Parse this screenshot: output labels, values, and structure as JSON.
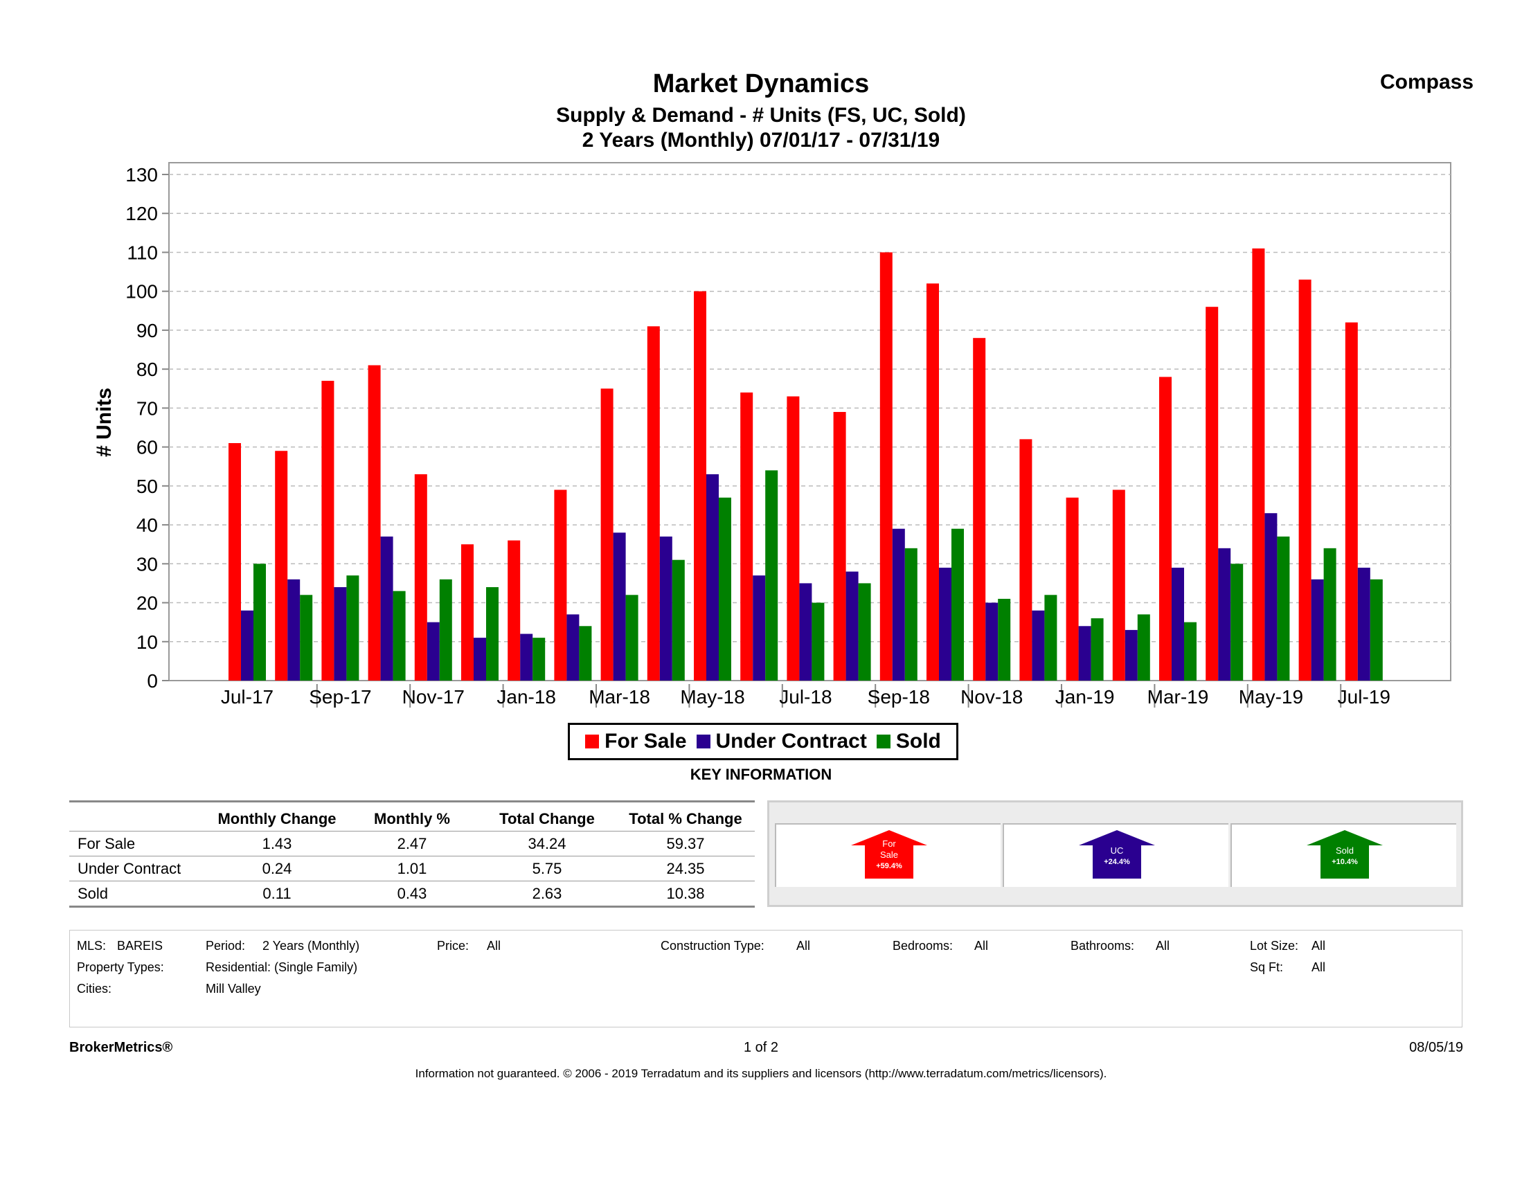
{
  "header": {
    "title": "Market Dynamics",
    "subtitle": "Supply & Demand - # Units (FS, UC, Sold)",
    "period": "2 Years (Monthly) 07/01/17 - 07/31/19",
    "brand": "Compass"
  },
  "chart_data": {
    "type": "bar",
    "title": "Market Dynamics",
    "ylabel": "# Units",
    "xlabel": "",
    "ylim": [
      0,
      130
    ],
    "yticks": [
      0,
      10,
      20,
      30,
      40,
      50,
      60,
      70,
      80,
      90,
      100,
      110,
      120,
      130
    ],
    "grid": true,
    "months": [
      "Jul-17",
      "Aug-17",
      "Sep-17",
      "Oct-17",
      "Nov-17",
      "Dec-17",
      "Jan-18",
      "Feb-18",
      "Mar-18",
      "Apr-18",
      "May-18",
      "Jun-18",
      "Jul-18",
      "Aug-18",
      "Sep-18",
      "Oct-18",
      "Nov-18",
      "Dec-18",
      "Jan-19",
      "Feb-19",
      "Mar-19",
      "Apr-19",
      "May-19",
      "Jun-19",
      "Jul-19"
    ],
    "tick_labels": [
      "Jul-17",
      "Sep-17",
      "Nov-17",
      "Jan-18",
      "Mar-18",
      "May-18",
      "Jul-18",
      "Sep-18",
      "Nov-18",
      "Jan-19",
      "Mar-19",
      "May-19",
      "Jul-19"
    ],
    "series": [
      {
        "name": "For Sale",
        "color": "#ff0000",
        "values": [
          61,
          59,
          77,
          81,
          53,
          35,
          36,
          49,
          75,
          91,
          100,
          74,
          73,
          69,
          110,
          102,
          88,
          62,
          47,
          49,
          78,
          96,
          111,
          103,
          92
        ]
      },
      {
        "name": "Under Contract",
        "color": "#2a0090",
        "values": [
          18,
          26,
          24,
          37,
          15,
          11,
          12,
          17,
          38,
          37,
          53,
          27,
          25,
          28,
          39,
          29,
          20,
          18,
          14,
          13,
          29,
          34,
          43,
          26,
          29
        ]
      },
      {
        "name": "Sold",
        "color": "#008000",
        "values": [
          30,
          22,
          27,
          23,
          26,
          24,
          11,
          14,
          22,
          31,
          47,
          54,
          20,
          25,
          34,
          39,
          21,
          22,
          16,
          17,
          15,
          30,
          37,
          34,
          26
        ]
      }
    ]
  },
  "legend": {
    "items": [
      {
        "label": "For Sale",
        "color": "#ff0000"
      },
      {
        "label": "Under Contract",
        "color": "#2a0090"
      },
      {
        "label": "Sold",
        "color": "#008000"
      }
    ]
  },
  "key_info": {
    "title": "KEY INFORMATION",
    "columns": [
      "",
      "Monthly Change",
      "Monthly %",
      "Total Change",
      "Total % Change"
    ],
    "rows": [
      {
        "label": "For Sale",
        "monthly_change": "1.43",
        "monthly_pct": "2.47",
        "total_change": "34.24",
        "total_pct": "59.37"
      },
      {
        "label": "Under Contract",
        "monthly_change": "0.24",
        "monthly_pct": "1.01",
        "total_change": "5.75",
        "total_pct": "24.35"
      },
      {
        "label": "Sold",
        "monthly_change": "0.11",
        "monthly_pct": "0.43",
        "total_change": "2.63",
        "total_pct": "10.38"
      }
    ],
    "arrows": [
      {
        "line1": "For",
        "line2": "Sale",
        "line3": "+59.4%",
        "color": "#ff0000"
      },
      {
        "line1": "UC",
        "line2": "+24.4%",
        "line3": "",
        "color": "#2a0090"
      },
      {
        "line1": "Sold",
        "line2": "+10.4%",
        "line3": "",
        "color": "#008000"
      }
    ]
  },
  "criteria": {
    "mls_label": "MLS:",
    "mls_value": "BAREIS",
    "period_label": "Period:",
    "period_value": "2 Years (Monthly)",
    "price_label": "Price:",
    "price_value": "All",
    "construction_label": "Construction Type:",
    "construction_value": "All",
    "bedrooms_label": "Bedrooms:",
    "bedrooms_value": "All",
    "bathrooms_label": "Bathrooms:",
    "bathrooms_value": "All",
    "lot_label": "Lot Size:",
    "lot_value": "All",
    "proptypes_label": "Property Types:",
    "proptypes_value": "Residential: (Single Family)",
    "sqft_label": "Sq Ft:",
    "sqft_value": "All",
    "cities_label": "Cities:",
    "cities_value": "Mill Valley"
  },
  "footer": {
    "brand": "BrokerMetrics®",
    "page": "1 of 2",
    "date": "08/05/19",
    "disclaimer": "Information not guaranteed.  © 2006 - 2019 Terradatum and its suppliers and licensors (http://www.terradatum.com/metrics/licensors)."
  }
}
